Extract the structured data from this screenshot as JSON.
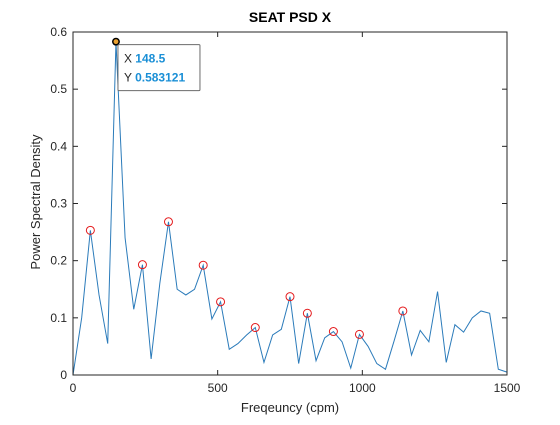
{
  "chart_data": {
    "type": "line",
    "title": "SEAT PSD X",
    "xlabel": "Freqeuncy (cpm)",
    "ylabel": "Power Spectral Density",
    "xlim": [
      0,
      1500
    ],
    "ylim": [
      0,
      0.6
    ],
    "xticks": [
      0,
      500,
      1000,
      1500
    ],
    "xtick_labels": [
      "0",
      "500",
      "1000",
      "1500"
    ],
    "yticks": [
      0,
      0.1,
      0.2,
      0.3,
      0.4,
      0.5,
      0.6
    ],
    "ytick_labels": [
      "0",
      "0.1",
      "0.2",
      "0.3",
      "0.4",
      "0.5",
      "0.6"
    ],
    "grid": false,
    "series": [
      {
        "color": "#2b7bba",
        "x": [
          0,
          30,
          60,
          90,
          120,
          148.5,
          180,
          210,
          240,
          270,
          300,
          330,
          360,
          390,
          420,
          450,
          480,
          510,
          540,
          570,
          600,
          630,
          660,
          690,
          720,
          750,
          780,
          810,
          840,
          870,
          900,
          930,
          960,
          990,
          1020,
          1050,
          1080,
          1110,
          1140,
          1170,
          1200,
          1230,
          1260,
          1290,
          1320,
          1350,
          1380,
          1410,
          1440,
          1470,
          1500
        ],
        "y": [
          0.0,
          0.1,
          0.253,
          0.14,
          0.055,
          0.583,
          0.24,
          0.115,
          0.193,
          0.028,
          0.16,
          0.268,
          0.15,
          0.14,
          0.15,
          0.192,
          0.098,
          0.128,
          0.045,
          0.055,
          0.07,
          0.083,
          0.022,
          0.07,
          0.08,
          0.137,
          0.02,
          0.108,
          0.025,
          0.065,
          0.076,
          0.058,
          0.012,
          0.071,
          0.05,
          0.02,
          0.01,
          0.06,
          0.112,
          0.035,
          0.078,
          0.058,
          0.146,
          0.022,
          0.088,
          0.075,
          0.1,
          0.112,
          0.108,
          0.01,
          0.005
        ]
      }
    ],
    "peak_markers": [
      {
        "x": 60,
        "y": 0.253
      },
      {
        "x": 240,
        "y": 0.193
      },
      {
        "x": 330,
        "y": 0.268
      },
      {
        "x": 450,
        "y": 0.192
      },
      {
        "x": 510,
        "y": 0.128
      },
      {
        "x": 630,
        "y": 0.083
      },
      {
        "x": 750,
        "y": 0.137
      },
      {
        "x": 810,
        "y": 0.108
      },
      {
        "x": 900,
        "y": 0.076
      },
      {
        "x": 990,
        "y": 0.071
      },
      {
        "x": 1140,
        "y": 0.112
      }
    ],
    "datatip": {
      "x": 148.5,
      "y": 0.583121,
      "x_label": "X",
      "y_label": "Y",
      "x_text": "148.5",
      "y_text": "0.583121"
    }
  },
  "colors": {
    "line": "#2b7bba",
    "marker": "#e41a1c",
    "datatip_value": "#1a8fd6",
    "axes": "#262626"
  }
}
